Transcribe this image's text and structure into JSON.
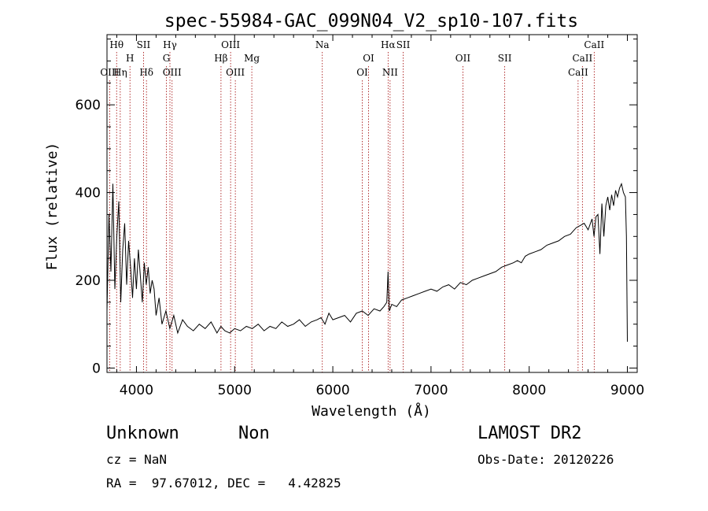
{
  "chart_data": {
    "type": "line",
    "title": "spec-55984-GAC_099N04_V2_sp10-107.fits",
    "xlabel": "Wavelength (Å)",
    "ylabel": "Flux (relative)",
    "xlim": [
      3700,
      9100
    ],
    "ylim": [
      -10,
      760
    ],
    "x_ticks": [
      4000,
      5000,
      6000,
      7000,
      8000,
      9000
    ],
    "y_ticks": [
      0,
      200,
      400,
      600
    ],
    "grid": false,
    "series": [
      {
        "x": [
          3700,
          3720,
          3740,
          3760,
          3780,
          3800,
          3820,
          3840,
          3860,
          3880,
          3900,
          3920,
          3940,
          3960,
          3980,
          4000,
          4020,
          4040,
          4060,
          4080,
          4100,
          4120,
          4140,
          4160,
          4180,
          4200,
          4230,
          4260,
          4300,
          4340,
          4380,
          4420,
          4470,
          4520,
          4580,
          4640,
          4700,
          4760,
          4820,
          4860,
          4900,
          4950,
          5000,
          5060,
          5120,
          5180,
          5240,
          5300,
          5360,
          5420,
          5480,
          5540,
          5600,
          5660,
          5720,
          5780,
          5840,
          5880,
          5920,
          5960,
          6000,
          6060,
          6120,
          6180,
          6240,
          6300,
          6360,
          6420,
          6480,
          6520,
          6550,
          6563,
          6575,
          6600,
          6650,
          6700,
          6760,
          6820,
          6880,
          6940,
          7000,
          7060,
          7120,
          7180,
          7240,
          7300,
          7360,
          7420,
          7480,
          7540,
          7600,
          7660,
          7720,
          7780,
          7840,
          7880,
          7920,
          7960,
          8000,
          8060,
          8120,
          8180,
          8240,
          8300,
          8360,
          8420,
          8480,
          8520,
          8560,
          8600,
          8640,
          8660,
          8680,
          8700,
          8720,
          8740,
          8760,
          8780,
          8800,
          8820,
          8840,
          8860,
          8880,
          8900,
          8920,
          8940,
          8960,
          8980,
          8990,
          9000
        ],
        "values": [
          130,
          350,
          220,
          420,
          180,
          300,
          380,
          150,
          270,
          330,
          190,
          290,
          230,
          160,
          250,
          180,
          270,
          210,
          150,
          240,
          190,
          230,
          170,
          200,
          180,
          120,
          160,
          100,
          130,
          90,
          120,
          80,
          110,
          95,
          85,
          100,
          90,
          105,
          80,
          95,
          85,
          80,
          90,
          85,
          95,
          90,
          100,
          85,
          95,
          90,
          105,
          95,
          100,
          110,
          95,
          105,
          110,
          115,
          100,
          125,
          110,
          115,
          120,
          105,
          125,
          130,
          120,
          135,
          130,
          140,
          150,
          220,
          130,
          145,
          140,
          155,
          160,
          165,
          170,
          175,
          180,
          175,
          185,
          190,
          180,
          195,
          190,
          200,
          205,
          210,
          215,
          220,
          230,
          235,
          240,
          245,
          240,
          255,
          260,
          265,
          270,
          280,
          285,
          290,
          300,
          305,
          320,
          325,
          330,
          315,
          340,
          300,
          345,
          350,
          260,
          375,
          300,
          370,
          390,
          360,
          395,
          370,
          405,
          390,
          410,
          420,
          400,
          390,
          300,
          60
        ]
      }
    ],
    "line_markers": [
      {
        "label": "OIII",
        "x": 3727,
        "row": 3
      },
      {
        "label": "Hθ",
        "x": 3798,
        "row": 1
      },
      {
        "label": "Hη",
        "x": 3835,
        "row": 3
      },
      {
        "label": "H",
        "x": 3934,
        "row": 2
      },
      {
        "label": "SII",
        "x": 4072,
        "row": 1
      },
      {
        "label": "Hδ",
        "x": 4102,
        "row": 3
      },
      {
        "label": "Hγ",
        "x": 4341,
        "row": 1
      },
      {
        "label": "G",
        "x": 4305,
        "row": 2
      },
      {
        "label": "OIII",
        "x": 4363,
        "row": 3
      },
      {
        "label": "OIII",
        "x": 4959,
        "row": 1
      },
      {
        "label": "Hβ",
        "x": 4861,
        "row": 2
      },
      {
        "label": "OIII",
        "x": 5007,
        "row": 3
      },
      {
        "label": "Mg",
        "x": 5175,
        "row": 2
      },
      {
        "label": "Na",
        "x": 5893,
        "row": 1
      },
      {
        "label": "OI",
        "x": 6364,
        "row": 2
      },
      {
        "label": "OI",
        "x": 6300,
        "row": 3
      },
      {
        "label": "Hα",
        "x": 6563,
        "row": 1
      },
      {
        "label": "NII",
        "x": 6583,
        "row": 3
      },
      {
        "label": "SII",
        "x": 6717,
        "row": 1
      },
      {
        "label": "OII",
        "x": 7325,
        "row": 2
      },
      {
        "label": "SII",
        "x": 7751,
        "row": 2
      },
      {
        "label": "CaII",
        "x": 8662,
        "row": 1
      },
      {
        "label": "CaII",
        "x": 8542,
        "row": 2
      },
      {
        "label": "CaII",
        "x": 8498,
        "row": 3
      }
    ]
  },
  "footer": {
    "object_class": "Unknown",
    "object_subclass": "Non",
    "survey": "LAMOST DR2",
    "cz": "cz = NaN",
    "obs_date": "Obs-Date: 20120226",
    "coords": "RA =  97.67012, DEC =   4.42825"
  }
}
